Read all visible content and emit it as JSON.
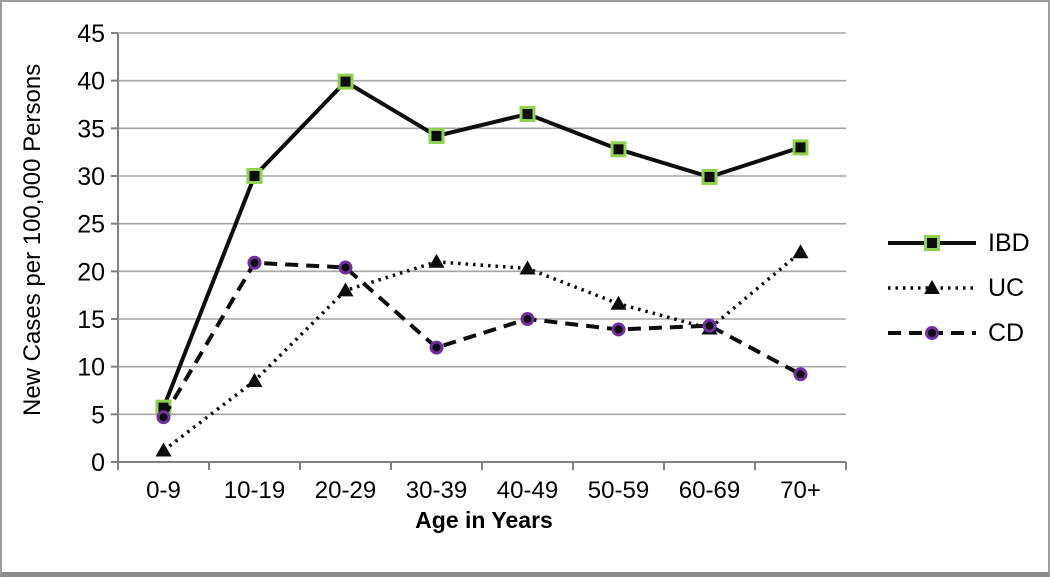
{
  "chart_data": {
    "type": "line",
    "title": "",
    "xlabel": "Age in Years",
    "ylabel": "New Cases per 100,000 Persons",
    "categories": [
      "0-9",
      "10-19",
      "20-29",
      "30-39",
      "40-49",
      "50-59",
      "60-69",
      "70+"
    ],
    "y_ticks": [
      0,
      5,
      10,
      15,
      20,
      25,
      30,
      35,
      40,
      45
    ],
    "ylim": [
      0,
      45
    ],
    "grid": "horizontal",
    "legend_position": "right",
    "series": [
      {
        "name": "IBD",
        "values": [
          5.7,
          30,
          39.9,
          34.2,
          36.5,
          32.8,
          29.9,
          33
        ],
        "line_style": "solid",
        "marker": "square",
        "line_color": "#0d0d0d",
        "marker_fill": "#0d0d0d",
        "marker_outline": "#92d050"
      },
      {
        "name": "UC",
        "values": [
          1.2,
          8.5,
          18,
          21,
          20.3,
          16.6,
          14,
          22
        ],
        "line_style": "dotted",
        "marker": "triangle",
        "line_color": "#0d0d0d",
        "marker_fill": "#0d0d0d",
        "marker_outline": "#0d0d0d"
      },
      {
        "name": "CD",
        "values": [
          4.7,
          20.9,
          20.4,
          12,
          15,
          13.9,
          14.3,
          9.2
        ],
        "line_style": "dashed",
        "marker": "circle",
        "line_color": "#0d0d0d",
        "marker_fill": "#0d0d0d",
        "marker_outline": "#7030a0"
      }
    ],
    "colors": {
      "gridline": "#a6a6a6",
      "axis": "#808080",
      "text": "#000000"
    }
  }
}
